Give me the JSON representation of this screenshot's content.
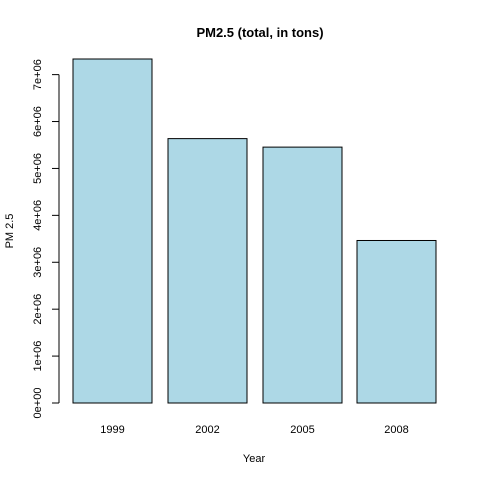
{
  "chart_data": {
    "type": "bar",
    "title": "PM2.5 (total, in tons)",
    "xlabel": "Year",
    "ylabel": "PM 2.5",
    "categories": [
      "1999",
      "2002",
      "2005",
      "2008"
    ],
    "values": [
      7332967,
      5635780,
      5454703,
      3464206
    ],
    "ylim": [
      0,
      7332967
    ],
    "yticks": [
      0,
      1000000,
      2000000,
      3000000,
      4000000,
      5000000,
      6000000,
      7000000
    ],
    "ytick_labels": [
      "0e+00",
      "1e+06",
      "2e+06",
      "3e+06",
      "4e+06",
      "5e+06",
      "6e+06",
      "7e+06"
    ],
    "bar_color": "#add8e6",
    "bar_stroke": "#000000",
    "grid": false,
    "legend": "none"
  }
}
